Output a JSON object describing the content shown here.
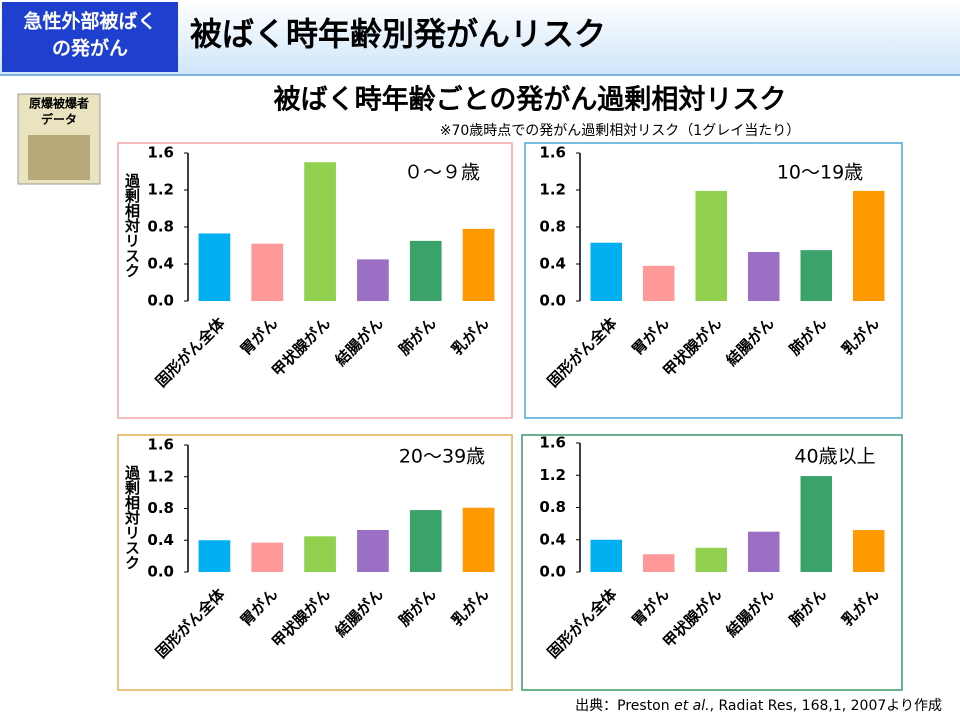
{
  "header": {
    "badge": [
      "急性外部被ばく",
      "の発がん"
    ],
    "title": "被ばく時年齢別発がんリスク",
    "side_label": [
      "原爆被爆者",
      "データ"
    ]
  },
  "subtitle": "被ばく時年齢ごとの発がん過剰相対リスク",
  "note": "※70歳時点での発がん過剰相対リスク（1グレイ当たり）",
  "source": [
    "出典：Preston ",
    "et al.",
    ", Radiat Res, 168,1, 2007より作成"
  ],
  "chart_data": [
    {
      "type": "bar",
      "annotation": "０～９歳",
      "ylabel": "過剰相対リスク",
      "frame_color": "#f2a6a6",
      "categories": [
        "固形がん全体",
        "胃がん",
        "甲状腺がん",
        "結腸がん",
        "肺がん",
        "乳がん"
      ],
      "values": [
        0.73,
        0.62,
        1.5,
        0.45,
        0.65,
        0.78
      ],
      "colors": [
        "#00b0f0",
        "#ff9999",
        "#92d050",
        "#9a6fc4",
        "#3aa36a",
        "#ff9900"
      ],
      "ylim": [
        0,
        1.6
      ],
      "yticks": [
        {
          "value": 0,
          "label": "0.0"
        },
        0.4,
        0.8,
        1.2,
        1.6
      ]
    },
    {
      "type": "bar",
      "annotation": "10～19歳",
      "frame_color": "#4aa8d8",
      "categories": [
        "固形がん全体",
        "胃がん",
        "甲状腺がん",
        "結腸がん",
        "肺がん",
        "乳がん"
      ],
      "values": [
        0.63,
        0.38,
        1.19,
        0.53,
        0.55,
        1.19
      ],
      "colors": [
        "#00b0f0",
        "#ff9999",
        "#92d050",
        "#9a6fc4",
        "#3aa36a",
        "#ff9900"
      ],
      "ylim": [
        0,
        1.6
      ],
      "yticks": [
        {
          "value": 0,
          "label": "0.0"
        },
        0.4,
        0.8,
        1.2,
        1.6
      ]
    },
    {
      "type": "bar",
      "annotation": "20～39歳",
      "ylabel": "過剰相対リスク",
      "frame_color": "#e0b050",
      "categories": [
        "固形がん全体",
        "胃がん",
        "甲状腺がん",
        "結腸がん",
        "肺がん",
        "乳がん"
      ],
      "values": [
        0.4,
        0.37,
        0.45,
        0.53,
        0.78,
        0.81
      ],
      "colors": [
        "#00b0f0",
        "#ff9999",
        "#92d050",
        "#9a6fc4",
        "#3aa36a",
        "#ff9900"
      ],
      "ylim": [
        0,
        1.6
      ],
      "yticks": [
        {
          "value": 0,
          "label": "0.0"
        },
        0.4,
        0.8,
        1.2,
        1.6
      ]
    },
    {
      "type": "bar",
      "annotation": "40歳以上",
      "frame_color": "#3a9a6a",
      "categories": [
        "固形がん全体",
        "胃がん",
        "甲状腺がん",
        "結腸がん",
        "肺がん",
        "乳がん"
      ],
      "values": [
        0.4,
        0.22,
        0.3,
        0.5,
        1.19,
        0.52
      ],
      "colors": [
        "#00b0f0",
        "#ff9999",
        "#92d050",
        "#9a6fc4",
        "#3aa36a",
        "#ff9900"
      ],
      "ylim": [
        0,
        1.6
      ],
      "yticks": [
        {
          "value": 0,
          "label": "0.0"
        },
        0.4,
        0.8,
        1.2,
        1.6
      ]
    }
  ]
}
